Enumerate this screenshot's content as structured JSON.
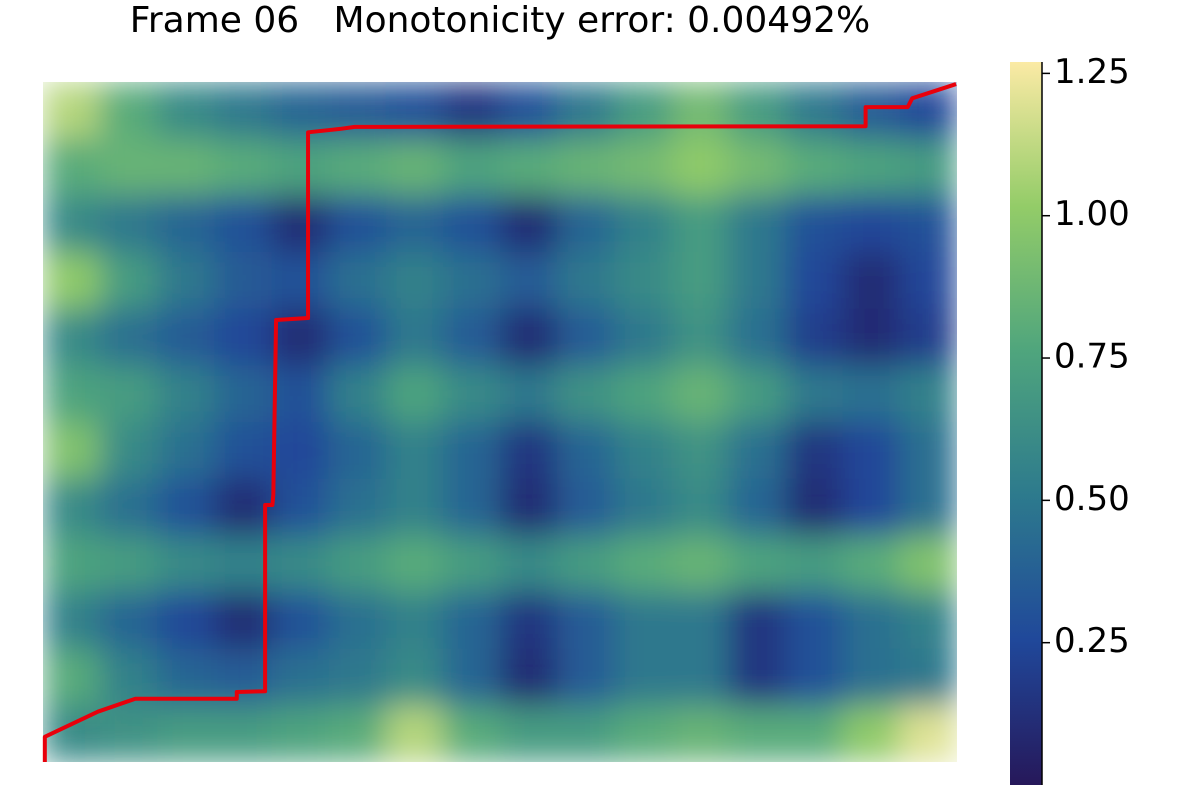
{
  "chart_data": {
    "type": "heatmap",
    "title": "Frame 06   Monotonicity error: 0.00492%",
    "xlim": [
      0,
      100
    ],
    "ylim": [
      0,
      100
    ],
    "clim": [
      0,
      1.27
    ],
    "colormap": [
      "#26185a",
      "#20489a",
      "#2d7a8d",
      "#4fa57d",
      "#93cc68",
      "#fbeaa5"
    ],
    "z": [
      [
        1.1,
        0.8,
        0.6,
        0.5,
        0.4,
        0.35,
        0.3,
        0.15,
        0.3,
        0.5,
        0.7,
        0.9,
        0.7,
        0.5,
        0.35,
        0.25
      ],
      [
        0.8,
        0.85,
        0.85,
        0.8,
        0.75,
        0.8,
        0.85,
        0.75,
        0.8,
        0.85,
        0.9,
        1.0,
        0.9,
        0.8,
        0.75,
        0.7
      ],
      [
        0.6,
        0.5,
        0.4,
        0.3,
        0.1,
        0.3,
        0.4,
        0.3,
        0.1,
        0.4,
        0.55,
        0.7,
        0.5,
        0.3,
        0.25,
        0.3
      ],
      [
        1.0,
        0.7,
        0.5,
        0.35,
        0.3,
        0.45,
        0.55,
        0.45,
        0.35,
        0.5,
        0.6,
        0.7,
        0.5,
        0.25,
        0.1,
        0.25
      ],
      [
        0.6,
        0.45,
        0.35,
        0.25,
        0.1,
        0.3,
        0.5,
        0.35,
        0.1,
        0.35,
        0.5,
        0.65,
        0.45,
        0.2,
        0.1,
        0.2
      ],
      [
        0.75,
        0.7,
        0.55,
        0.4,
        0.3,
        0.55,
        0.75,
        0.6,
        0.5,
        0.65,
        0.75,
        0.85,
        0.7,
        0.5,
        0.45,
        0.55
      ],
      [
        0.95,
        0.6,
        0.45,
        0.3,
        0.25,
        0.4,
        0.55,
        0.4,
        0.15,
        0.4,
        0.55,
        0.65,
        0.45,
        0.15,
        0.25,
        0.45
      ],
      [
        0.6,
        0.45,
        0.3,
        0.1,
        0.3,
        0.45,
        0.55,
        0.4,
        0.1,
        0.35,
        0.5,
        0.6,
        0.4,
        0.1,
        0.25,
        0.45
      ],
      [
        0.75,
        0.7,
        0.6,
        0.55,
        0.6,
        0.7,
        0.8,
        0.7,
        0.6,
        0.7,
        0.8,
        0.85,
        0.75,
        0.7,
        0.8,
        0.95
      ],
      [
        0.55,
        0.4,
        0.25,
        0.1,
        0.3,
        0.45,
        0.55,
        0.4,
        0.15,
        0.35,
        0.5,
        0.5,
        0.15,
        0.3,
        0.45,
        0.55
      ],
      [
        0.8,
        0.55,
        0.4,
        0.35,
        0.45,
        0.5,
        0.6,
        0.4,
        0.1,
        0.35,
        0.5,
        0.5,
        0.15,
        0.3,
        0.45,
        0.5
      ],
      [
        0.6,
        0.65,
        0.7,
        0.7,
        0.75,
        0.8,
        1.1,
        0.8,
        0.7,
        0.7,
        0.8,
        0.85,
        0.8,
        0.8,
        1.0,
        1.2
      ]
    ],
    "path": {
      "color": "#e8000b",
      "x": [
        0.2,
        0.2,
        6.0,
        10.1,
        21.2,
        21.2,
        24.3,
        24.3,
        25.1,
        25.2,
        25.5,
        29.0,
        29.0,
        32.5,
        34.1,
        90.0,
        90.0,
        94.6,
        95.1,
        99.9
      ],
      "y": [
        0.0,
        3.7,
        7.4,
        9.3,
        9.3,
        10.3,
        10.4,
        37.8,
        37.8,
        39.3,
        65.0,
        65.3,
        92.6,
        93.1,
        93.4,
        93.5,
        96.3,
        96.3,
        97.6,
        99.7
      ]
    },
    "cticks": [
      1.25,
      {
        "value": 1,
        "label": "1.00"
      },
      0.75,
      {
        "value": 0.5,
        "label": "0.50"
      },
      0.25
    ]
  }
}
